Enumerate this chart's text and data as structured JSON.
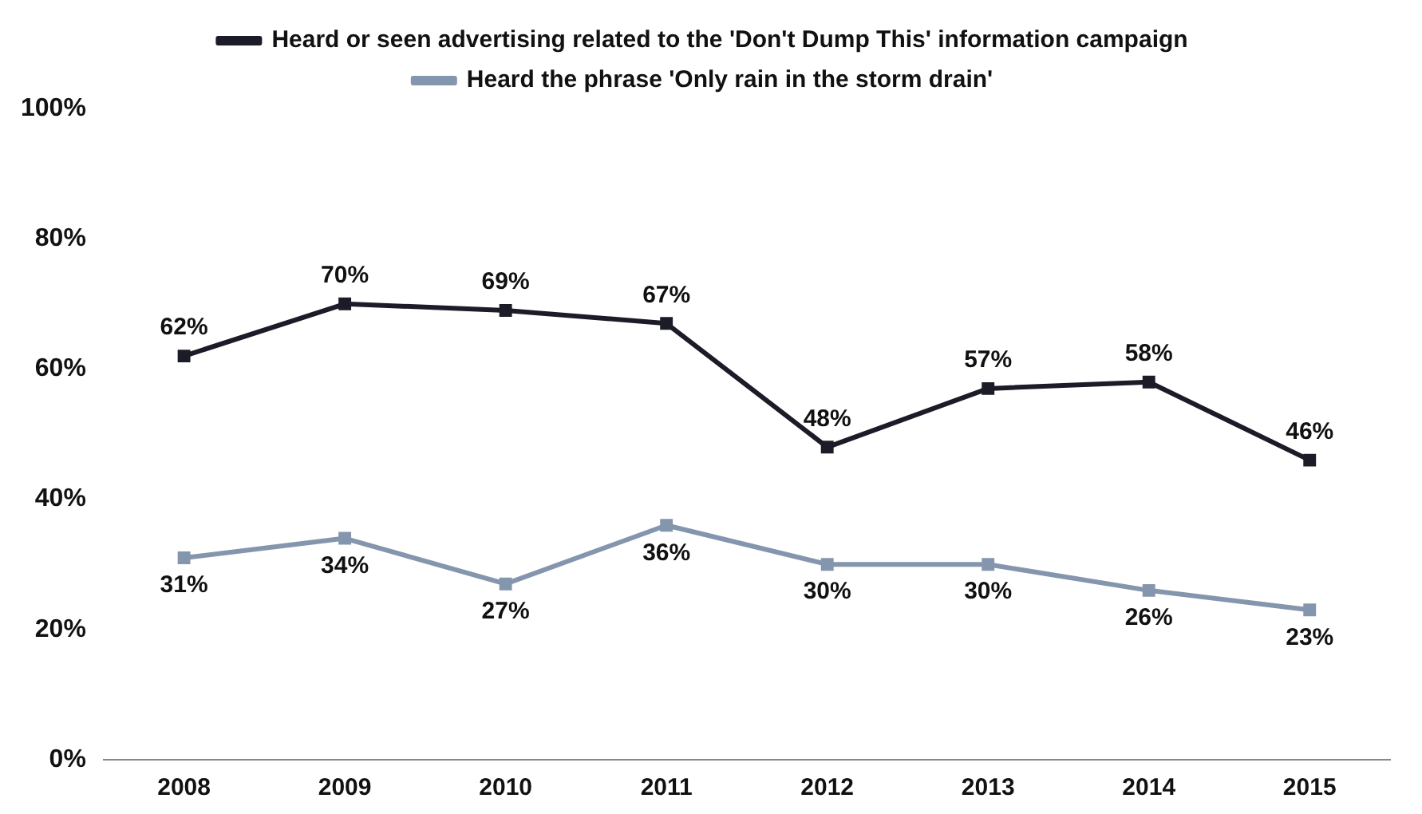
{
  "chart_data": {
    "type": "line",
    "categories": [
      "2008",
      "2009",
      "2010",
      "2011",
      "2012",
      "2013",
      "2014",
      "2015"
    ],
    "series": [
      {
        "name": "Heard or seen advertising related to the 'Don't Dump This' information campaign",
        "color": "#1c1c28",
        "values": [
          62,
          70,
          69,
          67,
          48,
          57,
          58,
          46
        ],
        "value_labels": [
          "62%",
          "70%",
          "69%",
          "67%",
          "48%",
          "57%",
          "58%",
          "46%"
        ]
      },
      {
        "name": "Heard the phrase 'Only rain in the storm drain'",
        "color": "#8496ad",
        "values": [
          31,
          34,
          27,
          36,
          30,
          30,
          26,
          23
        ],
        "value_labels": [
          "31%",
          "34%",
          "27%",
          "36%",
          "30%",
          "30%",
          "26%",
          "23%"
        ]
      }
    ],
    "ylim": [
      0,
      100
    ],
    "yticks": [
      {
        "value": 0,
        "label": "0%"
      },
      {
        "value": 20,
        "label": "20%"
      },
      {
        "value": 40,
        "label": "40%"
      },
      {
        "value": 60,
        "label": "60%"
      },
      {
        "value": 80,
        "label": "80%"
      },
      {
        "value": 100,
        "label": "100%"
      }
    ],
    "legend": "top",
    "marker": "square",
    "line_style": "solid",
    "grid": false
  }
}
